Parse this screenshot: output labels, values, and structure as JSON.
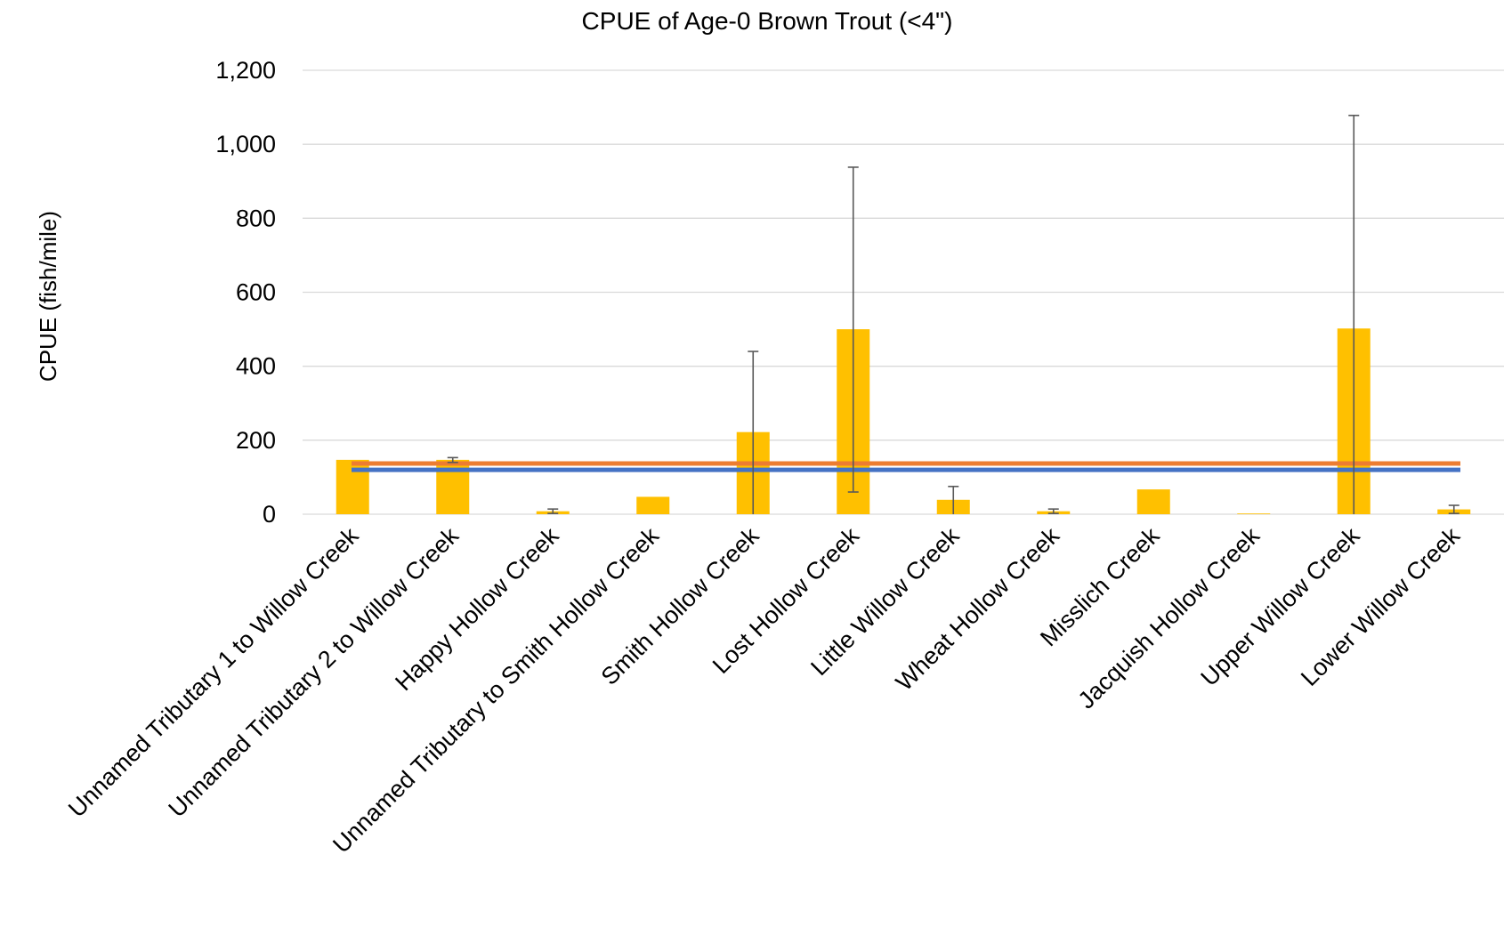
{
  "chart_data": {
    "type": "bar",
    "title": "CPUE of Age-0 Brown Trout (<4\")",
    "ylabel": "CPUE (fish/mile)",
    "xlabel": "",
    "ylim": [
      0,
      1200
    ],
    "yticks": [
      0,
      200,
      400,
      600,
      800,
      1000,
      1200
    ],
    "ytick_labels": [
      "0",
      "200",
      "400",
      "600",
      "800",
      "1,000",
      "1,200"
    ],
    "grid": true,
    "categories": [
      "Unnamed Tributary 1 to Willow Creek",
      "Unnamed Tributary 2 to Willow Creek",
      "Happy Hollow Creek",
      "Unnamed Tributary to Smith Hollow Creek",
      "Smith Hollow Creek",
      "Lost Hollow Creek",
      "Little Willow Creek",
      "Wheat Hollow Creek",
      "Misslich Creek",
      "Jacquish Hollow Creek",
      "Upper Willow Creek",
      "Lower Willow Creek"
    ],
    "values": [
      147,
      147,
      8,
      47,
      222,
      500,
      39,
      8,
      67,
      1,
      502,
      13
    ],
    "error_bars": [
      null,
      [
        140,
        153
      ],
      [
        2,
        14
      ],
      null,
      [
        0,
        440
      ],
      [
        60,
        938
      ],
      [
        0,
        75
      ],
      [
        2,
        14
      ],
      null,
      null,
      [
        0,
        1078
      ],
      [
        2,
        24
      ]
    ],
    "reference_lines": [
      {
        "value": 137,
        "color": "#ed7d31"
      },
      {
        "value": 120,
        "color": "#4472c4"
      }
    ],
    "colors": {
      "bar": "#ffc000",
      "error": "#595959",
      "grid": "#d9d9d9"
    }
  }
}
